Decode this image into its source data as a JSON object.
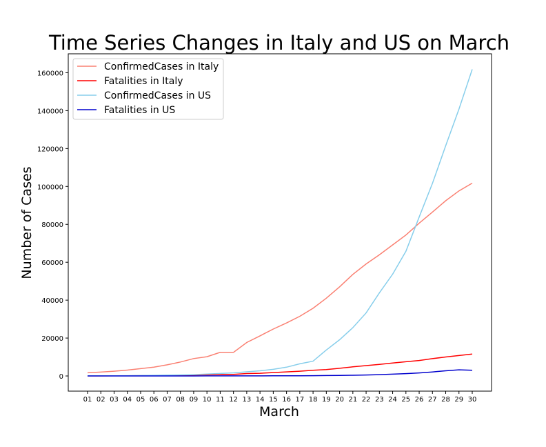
{
  "chart_data": {
    "type": "line",
    "title": "Time Series Changes in Italy and US on March",
    "xlabel": "March",
    "ylabel": "Number of Cases",
    "categories": [
      "01",
      "02",
      "03",
      "04",
      "05",
      "06",
      "07",
      "08",
      "09",
      "10",
      "11",
      "12",
      "13",
      "14",
      "15",
      "16",
      "17",
      "18",
      "19",
      "20",
      "21",
      "22",
      "23",
      "24",
      "25",
      "26",
      "27",
      "28",
      "29",
      "30"
    ],
    "yticks": [
      0,
      20000,
      40000,
      60000,
      80000,
      100000,
      120000,
      140000,
      160000
    ],
    "ylim": [
      -8000,
      170000
    ],
    "grid": false,
    "legend_position": "top-left",
    "series": [
      {
        "name": "ConfirmedCases in Italy",
        "color": "#fa8072",
        "values": [
          1694,
          2036,
          2502,
          3089,
          3858,
          4636,
          5883,
          7375,
          9172,
          10149,
          12462,
          12462,
          17660,
          21157,
          24747,
          27980,
          31506,
          35713,
          41035,
          47021,
          53578,
          59138,
          63927,
          69176,
          74386,
          80589,
          86498,
          92472,
          97689,
          101739
        ]
      },
      {
        "name": "Fatalities in Italy",
        "color": "#ff0000",
        "values": [
          34,
          52,
          79,
          107,
          148,
          197,
          233,
          366,
          463,
          631,
          827,
          827,
          1266,
          1441,
          1809,
          2158,
          2503,
          2978,
          3405,
          4032,
          4825,
          5476,
          6077,
          6820,
          7503,
          8165,
          9134,
          10023,
          10779,
          11591
        ]
      },
      {
        "name": "ConfirmedCases in US",
        "color": "#87ceeb",
        "values": [
          75,
          100,
          124,
          158,
          221,
          319,
          435,
          541,
          704,
          994,
          1301,
          1630,
          2183,
          2726,
          3499,
          4632,
          6421,
          7786,
          13680,
          19101,
          25493,
          33276,
          43847,
          53740,
          65778,
          83836,
          101657,
          121478,
          140886,
          161807
        ]
      },
      {
        "name": "Fatalities in US",
        "color": "#0000cd",
        "values": [
          1,
          6,
          9,
          11,
          12,
          15,
          19,
          22,
          26,
          30,
          38,
          41,
          48,
          58,
          73,
          95,
          121,
          171,
          239,
          309,
          374,
          509,
          689,
          957,
          1260,
          1614,
          2110,
          2754,
          3251,
          3002
        ]
      }
    ]
  }
}
